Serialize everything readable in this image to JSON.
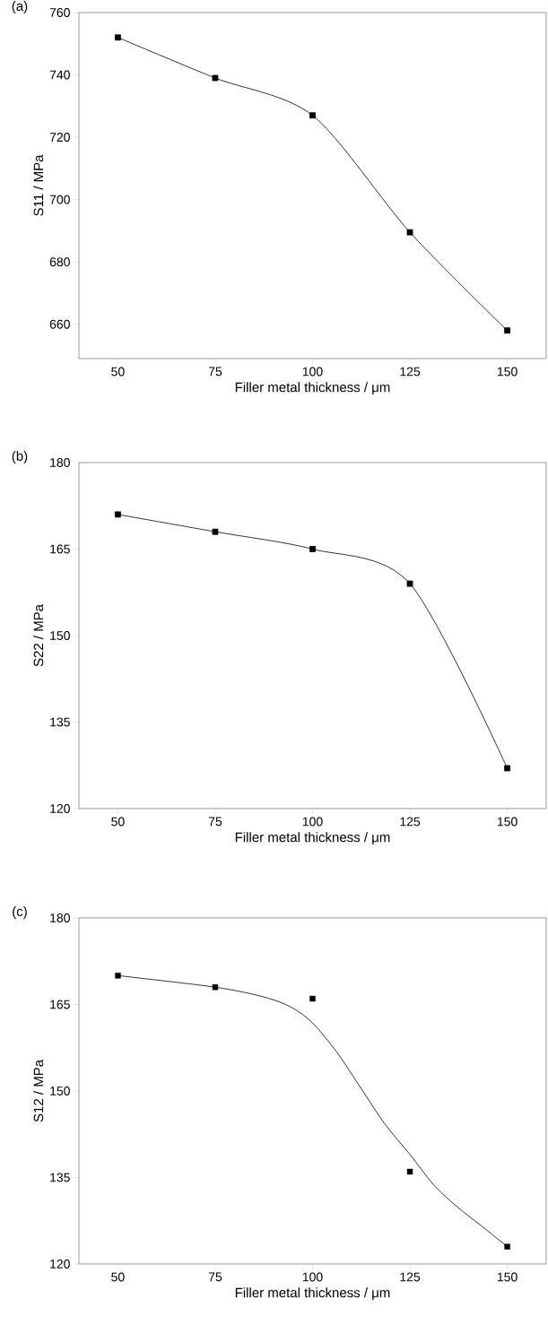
{
  "chart_data": [
    {
      "type": "line",
      "title": "(a)",
      "xlabel": "Filler metal thickness / μm",
      "ylabel": "S11 / MPa",
      "x": [
        50,
        75,
        100,
        125,
        150
      ],
      "xlim": [
        40,
        160
      ],
      "xticks": [
        50,
        75,
        100,
        125,
        150
      ],
      "ylim": [
        649,
        760
      ],
      "yticks": [
        660,
        680,
        700,
        720,
        740,
        760
      ],
      "marker": "square",
      "grid": false,
      "series": [
        {
          "color": "#000000",
          "values": [
            752,
            739,
            727,
            689.5,
            658
          ]
        }
      ]
    },
    {
      "type": "line",
      "title": "(b)",
      "xlabel": "Filler metal thickness / μm",
      "ylabel": "S22 / MPa",
      "x": [
        50,
        75,
        100,
        125,
        150
      ],
      "xlim": [
        40,
        160
      ],
      "xticks": [
        50,
        75,
        100,
        125,
        150
      ],
      "ylim": [
        120,
        180
      ],
      "yticks": [
        120,
        135,
        150,
        165,
        180
      ],
      "marker": "square",
      "grid": false,
      "series": [
        {
          "color": "#000000",
          "values": [
            171,
            168,
            165,
            159,
            127
          ]
        }
      ]
    },
    {
      "type": "scatter",
      "title": "(c)",
      "xlabel": "Filler metal thickness / μm",
      "ylabel": "S12 / MPa",
      "x": [
        50,
        75,
        100,
        125,
        150
      ],
      "xlim": [
        40,
        160
      ],
      "xticks": [
        50,
        75,
        100,
        125,
        150
      ],
      "ylim": [
        120,
        180
      ],
      "yticks": [
        120,
        135,
        150,
        165,
        180
      ],
      "marker": "square",
      "grid": false,
      "series": [
        {
          "color": "#000000",
          "values": [
            170,
            168,
            166,
            136,
            123
          ]
        },
        {
          "type": "line",
          "marker": "none",
          "color": "#000000",
          "x": [
            50,
            75,
            87.5,
            94.6,
            100,
            106.25,
            112.5,
            118.75,
            125,
            131.25,
            137.5,
            143.75,
            150
          ],
          "values": [
            170,
            168,
            166.3,
            164.5,
            161.8,
            156.7,
            150.4,
            144.1,
            139,
            133.6,
            129.7,
            126.4,
            123
          ]
        }
      ]
    }
  ]
}
